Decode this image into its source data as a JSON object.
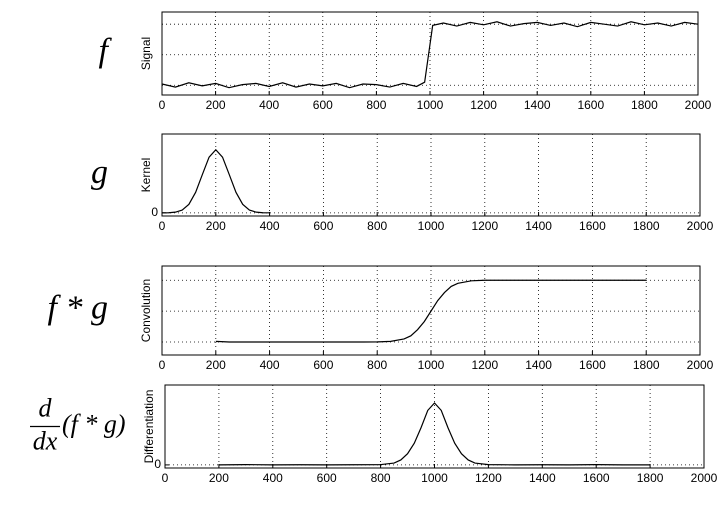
{
  "chart_data": [
    {
      "type": "line",
      "label": "f",
      "ylabel": "Signal",
      "x": [
        0,
        50,
        100,
        150,
        200,
        250,
        300,
        350,
        400,
        450,
        500,
        550,
        600,
        650,
        700,
        750,
        800,
        850,
        900,
        950,
        980,
        1010,
        1050,
        1100,
        1150,
        1200,
        1250,
        1300,
        1350,
        1400,
        1450,
        1500,
        1550,
        1600,
        1650,
        1700,
        1750,
        1800,
        1850,
        1900,
        1950,
        2000
      ],
      "series": [
        {
          "name": "Signal",
          "color": "#000000",
          "values": [
            0.02,
            -0.03,
            0.04,
            -0.01,
            0.03,
            -0.04,
            0.01,
            0.03,
            -0.02,
            0.04,
            -0.03,
            0.02,
            -0.01,
            0.03,
            -0.04,
            0.02,
            0.01,
            -0.03,
            0.03,
            -0.02,
            0.05,
            0.98,
            1.02,
            0.97,
            1.03,
            0.99,
            1.04,
            0.97,
            1.01,
            1.03,
            0.98,
            1.02,
            0.96,
            1.03,
            1.0,
            0.97,
            1.04,
            0.99,
            1.02,
            0.97,
            1.03,
            1.0
          ]
        }
      ],
      "xlim": [
        0,
        2000
      ],
      "xticks": [
        0,
        200,
        400,
        600,
        800,
        1000,
        1200,
        1400,
        1600,
        1800,
        2000
      ],
      "ylim": [
        -0.16,
        1.2
      ],
      "ygrid": [
        0,
        0.5,
        1
      ],
      "grid": true
    },
    {
      "type": "line",
      "label": "g",
      "ylabel": "Kernel",
      "x": [
        0,
        25,
        50,
        75,
        100,
        125,
        150,
        175,
        200,
        225,
        250,
        275,
        300,
        325,
        350,
        375,
        400
      ],
      "series": [
        {
          "name": "Kernel",
          "color": "#000000",
          "values": [
            0.0003,
            0.002,
            0.011,
            0.044,
            0.135,
            0.325,
            0.607,
            0.882,
            1,
            0.882,
            0.607,
            0.325,
            0.135,
            0.044,
            0.011,
            0.002,
            0.0003
          ]
        }
      ],
      "xlim": [
        0,
        2000
      ],
      "xticks": [
        0,
        200,
        400,
        600,
        800,
        1000,
        1200,
        1400,
        1600,
        1800,
        2000
      ],
      "ylim": [
        -0.05,
        1.25
      ],
      "yticks": [
        0
      ],
      "grid": true
    },
    {
      "type": "line",
      "label": "f * g",
      "ylabel": "Convolution",
      "x": [
        200,
        250,
        300,
        350,
        400,
        450,
        500,
        550,
        600,
        650,
        700,
        750,
        800,
        850,
        900,
        925,
        950,
        975,
        1000,
        1025,
        1050,
        1075,
        1100,
        1150,
        1200,
        1250,
        1300,
        1350,
        1400,
        1450,
        1500,
        1550,
        1600,
        1650,
        1700,
        1750,
        1800
      ],
      "series": [
        {
          "name": "Convolution",
          "color": "#000000",
          "values": [
            0.01,
            0,
            0,
            0,
            0,
            0,
            0,
            0,
            0,
            0,
            0,
            0,
            0.002,
            0.01,
            0.05,
            0.1,
            0.2,
            0.33,
            0.5,
            0.67,
            0.8,
            0.9,
            0.95,
            0.99,
            1,
            1,
            1,
            1,
            1,
            1,
            1,
            1,
            1,
            1,
            1,
            1,
            1
          ]
        }
      ],
      "xlim": [
        0,
        2000
      ],
      "xticks": [
        0,
        200,
        400,
        600,
        800,
        1000,
        1200,
        1400,
        1600,
        1800,
        2000
      ],
      "ylim": [
        -0.21,
        1.23
      ],
      "ygrid": [
        0,
        0.5,
        1
      ],
      "grid": true
    },
    {
      "type": "line",
      "label": {
        "numerator": "d",
        "denominator": "dx",
        "operand": "(f * g)"
      },
      "ylabel": "Differentiation",
      "x": [
        200,
        300,
        400,
        500,
        600,
        700,
        800,
        850,
        875,
        900,
        925,
        950,
        975,
        1000,
        1025,
        1050,
        1075,
        1100,
        1125,
        1150,
        1200,
        1300,
        1400,
        1500,
        1600,
        1700,
        1800
      ],
      "series": [
        {
          "name": "Differentiation",
          "color": "#000000",
          "values": [
            0,
            0.005,
            0,
            0.003,
            0,
            0.002,
            0.005,
            0.03,
            0.08,
            0.18,
            0.35,
            0.6,
            0.88,
            1,
            0.88,
            0.6,
            0.35,
            0.18,
            0.08,
            0.03,
            0.005,
            0,
            0.003,
            0,
            0.004,
            0,
            0
          ]
        }
      ],
      "xlim": [
        0,
        2000
      ],
      "xticks": [
        0,
        200,
        400,
        600,
        800,
        1000,
        1200,
        1400,
        1600,
        1800,
        2000
      ],
      "ylim": [
        -0.05,
        1.29
      ],
      "yticks": [
        0
      ],
      "grid": true
    }
  ]
}
